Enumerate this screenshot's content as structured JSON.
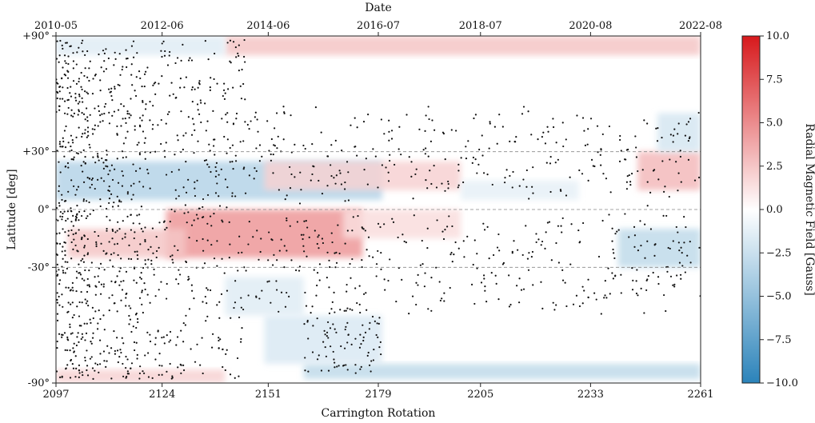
{
  "chart_data": {
    "type": "heatmap",
    "title": "",
    "xlabel": "Carrington Rotation",
    "x2label": "Date",
    "ylabel": "Latitude [deg]",
    "colorbar_label": "Radial Magnetic Field [Gauss]",
    "xlim": [
      2097,
      2261
    ],
    "ylim": [
      -90,
      90
    ],
    "clim": [
      -10,
      10
    ],
    "colormap": [
      "#2b83ba",
      "#ffffff",
      "#d7191c"
    ],
    "x_ticks": [
      {
        "value": 2097,
        "label": "2097"
      },
      {
        "value": 2124,
        "label": "2124"
      },
      {
        "value": 2151,
        "label": "2151"
      },
      {
        "value": 2179,
        "label": "2179"
      },
      {
        "value": 2205,
        "label": "2205"
      },
      {
        "value": 2233,
        "label": "2233"
      },
      {
        "value": 2261,
        "label": "2261"
      }
    ],
    "x2_ticks": [
      {
        "value": 2097,
        "label": "2010-05"
      },
      {
        "value": 2124,
        "label": "2012-06"
      },
      {
        "value": 2151,
        "label": "2014-06"
      },
      {
        "value": 2179,
        "label": "2016-07"
      },
      {
        "value": 2205,
        "label": "2018-07"
      },
      {
        "value": 2233,
        "label": "2020-08"
      },
      {
        "value": 2261,
        "label": "2022-08"
      }
    ],
    "y_ticks": [
      {
        "value": 90,
        "label": "+90°"
      },
      {
        "value": 30,
        "label": "+30°"
      },
      {
        "value": 0,
        "label": "0°"
      },
      {
        "value": -30,
        "label": "-30°"
      },
      {
        "value": -90,
        "label": "-90°"
      }
    ],
    "colorbar_ticks": [
      {
        "value": 10,
        "label": "10.0"
      },
      {
        "value": 7.5,
        "label": "7.5"
      },
      {
        "value": 5,
        "label": "5.0"
      },
      {
        "value": 2.5,
        "label": "2.5"
      },
      {
        "value": 0,
        "label": "0.0"
      },
      {
        "value": -2.5,
        "label": "−2.5"
      },
      {
        "value": -5,
        "label": "−5.0"
      },
      {
        "value": -7.5,
        "label": "−7.5"
      },
      {
        "value": -10,
        "label": "−10.0"
      }
    ],
    "gridlines_y": [
      30,
      0,
      -30
    ],
    "grid_style": "dashed",
    "field_regions": [
      {
        "x": [
          2140,
          2261
        ],
        "y": [
          80,
          90
        ],
        "value": 2.5
      },
      {
        "x": [
          2097,
          2140
        ],
        "y": [
          80,
          90
        ],
        "value": -1.5
      },
      {
        "x": [
          2097,
          2140
        ],
        "y": [
          -90,
          -83
        ],
        "value": 2.0
      },
      {
        "x": [
          2160,
          2261
        ],
        "y": [
          -88,
          -80
        ],
        "value": -3.0
      },
      {
        "x": [
          2150,
          2180
        ],
        "y": [
          -80,
          -55
        ],
        "value": -1.8
      },
      {
        "x": [
          2140,
          2160
        ],
        "y": [
          -55,
          -35
        ],
        "value": -1.5
      },
      {
        "x": [
          2097,
          2180
        ],
        "y": [
          5,
          25
        ],
        "value": -3.5
      },
      {
        "x": [
          2125,
          2175
        ],
        "y": [
          -25,
          0
        ],
        "value": 4.5
      },
      {
        "x": [
          2100,
          2130
        ],
        "y": [
          -25,
          -10
        ],
        "value": 2.5
      },
      {
        "x": [
          2150,
          2200
        ],
        "y": [
          10,
          25
        ],
        "value": 2.0
      },
      {
        "x": [
          2245,
          2261
        ],
        "y": [
          10,
          30
        ],
        "value": 3.0
      },
      {
        "x": [
          2240,
          2261
        ],
        "y": [
          -30,
          -10
        ],
        "value": -3.0
      },
      {
        "x": [
          2250,
          2261
        ],
        "y": [
          30,
          50
        ],
        "value": -2.0
      },
      {
        "x": [
          2200,
          2230
        ],
        "y": [
          5,
          15
        ],
        "value": -1.2
      },
      {
        "x": [
          2170,
          2200
        ],
        "y": [
          -15,
          0
        ],
        "value": 1.5
      }
    ],
    "sunspot_groups_dots": "black dots, densest at 2097-2145 across all latitudes, sparse afterwards"
  }
}
